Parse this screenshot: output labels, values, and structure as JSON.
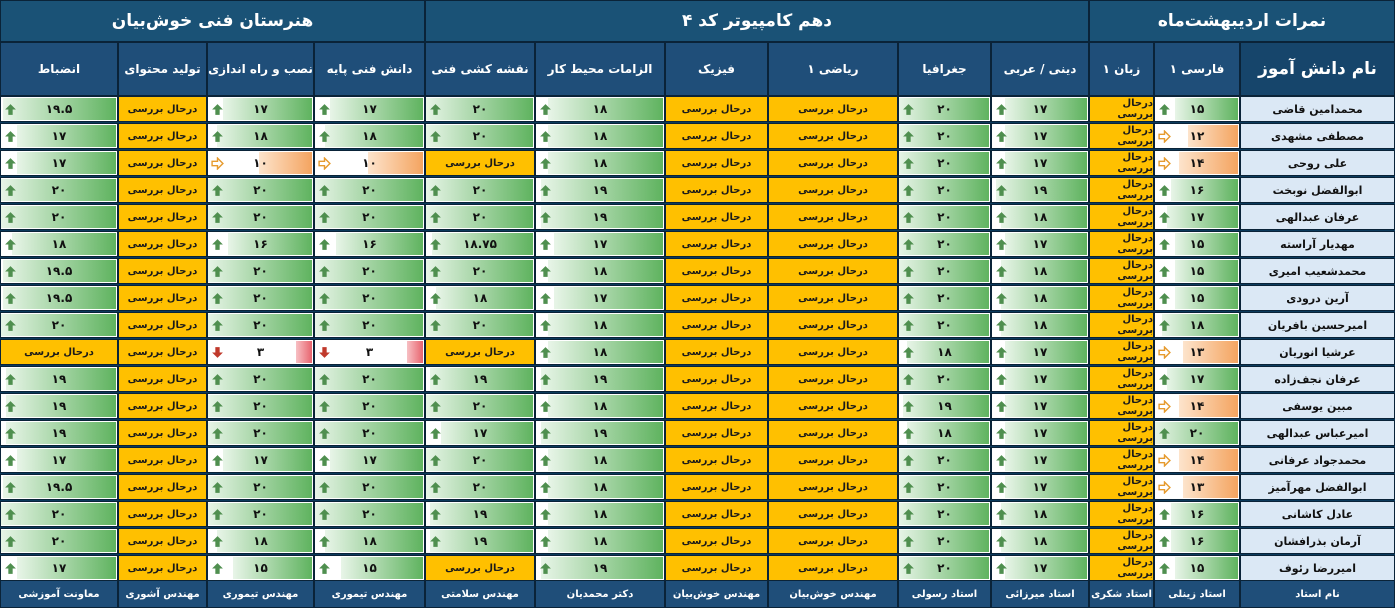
{
  "titles": {
    "school": "هنرستان فنی خوش‌بیان",
    "class": "دهم کامپیوتر کد ۴",
    "term": "نمرات اردیبهشت‌ماه"
  },
  "name_header": "نام دانش آموز",
  "pending_text": "درحال بررسی",
  "columns": [
    {
      "label": "فارسی ۱",
      "teacher": "استاد زینلی"
    },
    {
      "label": "زبان ۱",
      "teacher": "استاد شکری"
    },
    {
      "label": "دینی / عربی",
      "teacher": "استاد میرزائی"
    },
    {
      "label": "جغرافیا",
      "teacher": "استاد رسولی"
    },
    {
      "label": "ریاضی ۱",
      "teacher": "مهندس خوش‌بیان"
    },
    {
      "label": "فیزیک",
      "teacher": "مهندس خوش‌بیان"
    },
    {
      "label": "الزامات محیط کار",
      "teacher": "دکتر محمدیان"
    },
    {
      "label": "نقشه کشی فنی",
      "teacher": "مهندس سلامتی"
    },
    {
      "label": "دانش فنی پایه",
      "teacher": "مهندس تیموری"
    },
    {
      "label": "نصب و راه اندازی",
      "teacher": "مهندس تیموری"
    },
    {
      "label": "تولید محتوای",
      "teacher": "مهندس آشوری"
    },
    {
      "label": "انضباط",
      "teacher": "معاونت آموزشی"
    }
  ],
  "footer_name": "نام استاد",
  "colors": {
    "up": "#4f8f4f",
    "side": "#e69b2e",
    "down": "#c0392b",
    "pending": "#ffc000"
  },
  "students": [
    {
      "name": "محمدامین قاضی",
      "grades": [
        "۱۵",
        "P",
        "۱۷",
        "۲۰",
        "P",
        "P",
        "۱۸",
        "۲۰",
        "۱۷",
        "۱۷",
        "P",
        "۱۹.۵"
      ]
    },
    {
      "name": "مصطفی مشهدی",
      "grades": [
        "۱۲",
        "P",
        "۱۷",
        "۲۰",
        "P",
        "P",
        "۱۸",
        "۲۰",
        "۱۸",
        "۱۸",
        "P",
        "۱۷"
      ]
    },
    {
      "name": "علی روحی",
      "grades": [
        "۱۴",
        "P",
        "۱۷",
        "۲۰",
        "P",
        "P",
        "۱۸",
        "P",
        "۱۰",
        "۱۰",
        "P",
        "۱۷"
      ]
    },
    {
      "name": "ابوالفضل نوبخت",
      "grades": [
        "۱۶",
        "P",
        "۱۹",
        "۲۰",
        "P",
        "P",
        "۱۹",
        "۲۰",
        "۲۰",
        "۲۰",
        "P",
        "۲۰"
      ]
    },
    {
      "name": "عرفان عبدالهی",
      "grades": [
        "۱۷",
        "P",
        "۱۸",
        "۲۰",
        "P",
        "P",
        "۱۹",
        "۲۰",
        "۲۰",
        "۲۰",
        "P",
        "۲۰"
      ]
    },
    {
      "name": "مهدیار آراسته",
      "grades": [
        "۱۵",
        "P",
        "۱۷",
        "۲۰",
        "P",
        "P",
        "۱۷",
        "۱۸.۷۵",
        "۱۶",
        "۱۶",
        "P",
        "۱۸"
      ]
    },
    {
      "name": "محمدشعیب امیری",
      "grades": [
        "۱۵",
        "P",
        "۱۸",
        "۲۰",
        "P",
        "P",
        "۱۸",
        "۲۰",
        "۲۰",
        "۲۰",
        "P",
        "۱۹.۵"
      ]
    },
    {
      "name": "آرین درودی",
      "grades": [
        "۱۵",
        "P",
        "۱۸",
        "۲۰",
        "P",
        "P",
        "۱۷",
        "۱۸",
        "۲۰",
        "۲۰",
        "P",
        "۱۹.۵"
      ]
    },
    {
      "name": "امیرحسین بافریان",
      "grades": [
        "۱۸",
        "P",
        "۱۸",
        "۲۰",
        "P",
        "P",
        "۱۸",
        "۲۰",
        "۲۰",
        "۲۰",
        "P",
        "۲۰"
      ]
    },
    {
      "name": "عرشیا انوریان",
      "grades": [
        "۱۳",
        "P",
        "۱۷",
        "۱۸",
        "P",
        "P",
        "۱۸",
        "P",
        "۳",
        "۳",
        "P",
        "P"
      ]
    },
    {
      "name": "عرفان نجف‌زاده",
      "grades": [
        "۱۷",
        "P",
        "۱۷",
        "۲۰",
        "P",
        "P",
        "۱۹",
        "۱۹",
        "۲۰",
        "۲۰",
        "P",
        "۱۹"
      ]
    },
    {
      "name": "مبین یوسفی",
      "grades": [
        "۱۴",
        "P",
        "۱۷",
        "۱۹",
        "P",
        "P",
        "۱۸",
        "۲۰",
        "۲۰",
        "۲۰",
        "P",
        "۱۹"
      ]
    },
    {
      "name": "امیرعباس عبدالهی",
      "grades": [
        "۲۰",
        "P",
        "۱۷",
        "۱۸",
        "P",
        "P",
        "۱۹",
        "۱۷",
        "۲۰",
        "۲۰",
        "P",
        "۱۹"
      ]
    },
    {
      "name": "محمدجواد عرفانی",
      "grades": [
        "۱۴",
        "P",
        "۱۷",
        "۲۰",
        "P",
        "P",
        "۱۸",
        "۲۰",
        "۱۷",
        "۱۷",
        "P",
        "۱۷"
      ]
    },
    {
      "name": "ابوالفضل مهرآمیز",
      "grades": [
        "۱۳",
        "P",
        "۱۷",
        "۲۰",
        "P",
        "P",
        "۱۸",
        "۲۰",
        "۲۰",
        "۲۰",
        "P",
        "۱۹.۵"
      ]
    },
    {
      "name": "عادل کاشانی",
      "grades": [
        "۱۶",
        "P",
        "۱۸",
        "۲۰",
        "P",
        "P",
        "۱۸",
        "۱۹",
        "۲۰",
        "۲۰",
        "P",
        "۲۰"
      ]
    },
    {
      "name": "آرمان بذرافشان",
      "grades": [
        "۱۶",
        "P",
        "۱۸",
        "۲۰",
        "P",
        "P",
        "۱۸",
        "۱۹",
        "۱۸",
        "۱۸",
        "P",
        "۲۰"
      ]
    },
    {
      "name": "امیررضا رئوف",
      "grades": [
        "۱۵",
        "P",
        "۱۷",
        "۲۰",
        "P",
        "P",
        "۱۹",
        "P",
        "۱۵",
        "۱۵",
        "P",
        "۱۷"
      ]
    }
  ]
}
